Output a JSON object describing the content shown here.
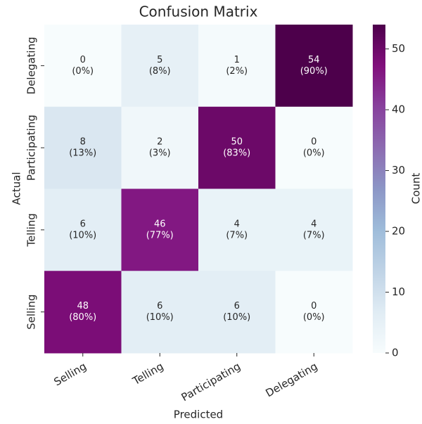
{
  "chart_data": {
    "type": "heatmap",
    "title": "Confusion Matrix",
    "x_label": "Predicted",
    "y_label": "Actual",
    "x_categories": [
      "Selling",
      "Telling",
      "Participating",
      "Delegating"
    ],
    "y_categories": [
      "Delegating",
      "Participating",
      "Telling",
      "Selling"
    ],
    "values": [
      [
        0,
        5,
        1,
        54
      ],
      [
        8,
        2,
        50,
        0
      ],
      [
        6,
        46,
        4,
        4
      ],
      [
        48,
        6,
        6,
        0
      ]
    ],
    "percent_labels": [
      [
        "(0%)",
        "(8%)",
        "(2%)",
        "(90%)"
      ],
      [
        "(13%)",
        "(3%)",
        "(83%)",
        "(0%)"
      ],
      [
        "(10%)",
        "(77%)",
        "(7%)",
        "(7%)"
      ],
      [
        "(80%)",
        "(10%)",
        "(10%)",
        "(0%)"
      ]
    ],
    "colormap": "BuPu",
    "clim": [
      0,
      54
    ],
    "colorbar_ticks": [
      0,
      10,
      20,
      30,
      40,
      50
    ],
    "colorbar_label": "Count"
  }
}
